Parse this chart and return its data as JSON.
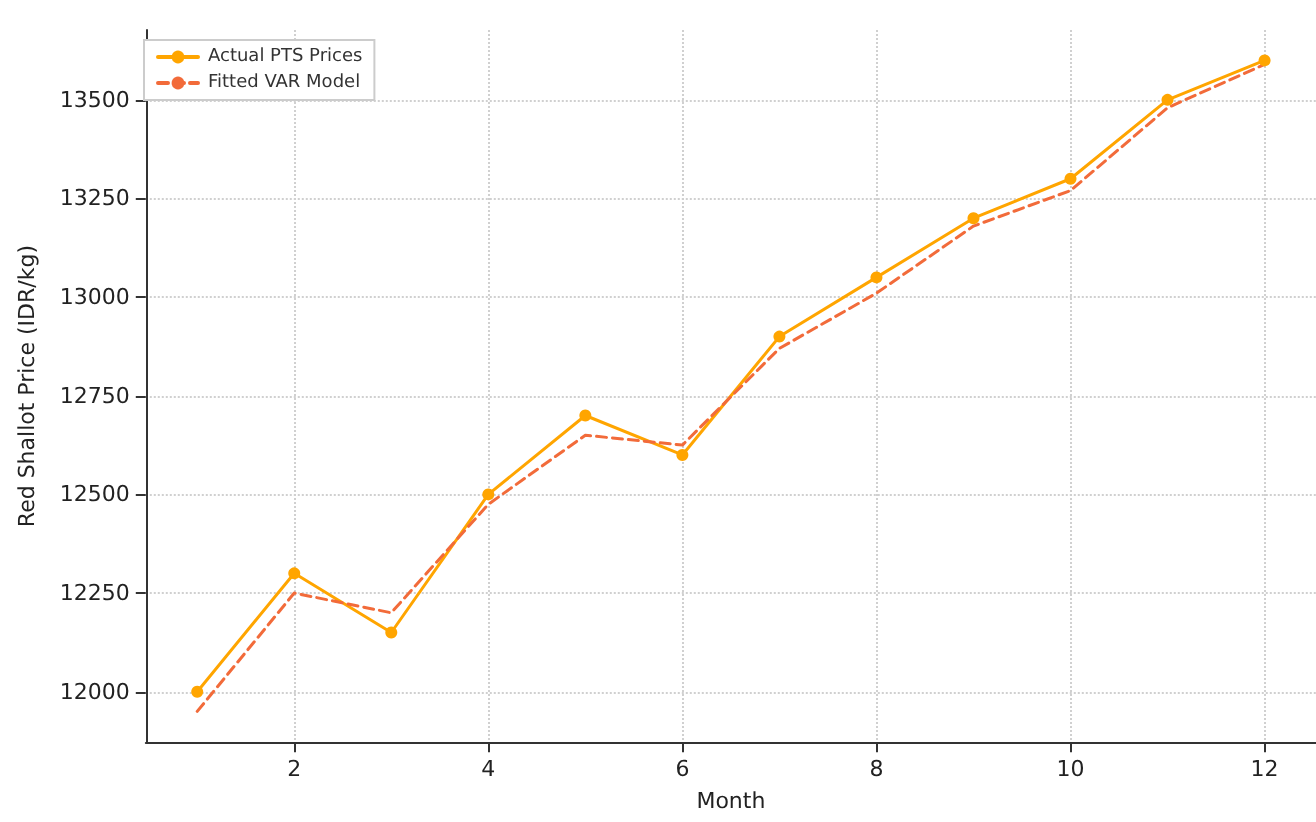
{
  "chart_data": {
    "type": "line",
    "xlabel": "Month",
    "ylabel": "Red Shallot Price (IDR/kg)",
    "x": [
      1,
      2,
      3,
      4,
      5,
      6,
      7,
      8,
      9,
      10,
      11,
      12
    ],
    "series": [
      {
        "name": "Actual PTS Prices",
        "color": "#ffa500",
        "marker": "circle",
        "line_style": "solid",
        "values": [
          12000,
          12300,
          12150,
          12500,
          12700,
          12600,
          12900,
          13050,
          13200,
          13300,
          13500,
          13600
        ]
      },
      {
        "name": "Fitted VAR Model",
        "color": "#f26b3a",
        "marker": "none",
        "line_style": "dashed",
        "values": [
          11950,
          12250,
          12200,
          12475,
          12650,
          12625,
          12870,
          13010,
          13180,
          13270,
          13480,
          13590
        ]
      }
    ],
    "xlim": [
      0.47,
      12.53
    ],
    "xticks": [
      2,
      4,
      6,
      8,
      10,
      12
    ],
    "ylim": [
      11872,
      13677
    ],
    "yticks": [
      12000,
      12250,
      12500,
      12750,
      13000,
      13250,
      13500
    ],
    "grid": true,
    "legend": "top left"
  }
}
